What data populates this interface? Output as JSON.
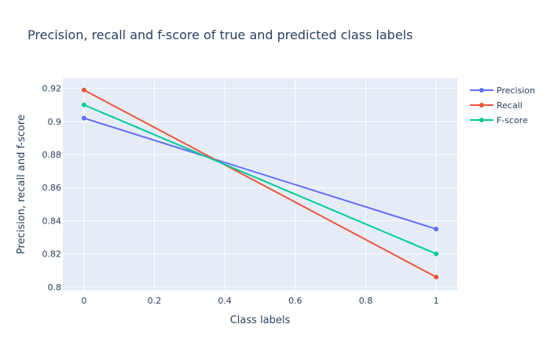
{
  "chart_data": {
    "type": "line",
    "title": "Precision, recall and f-score of true and predicted class labels",
    "xlabel": "Class labels",
    "ylabel": "Precision, recall and f-score",
    "x": [
      0,
      1
    ],
    "xlim": [
      -0.06,
      1.06
    ],
    "ylim": [
      0.798,
      0.926
    ],
    "x_ticks": [
      0,
      0.2,
      0.4,
      0.6,
      0.8,
      1
    ],
    "x_tick_labels": [
      "0",
      "0.2",
      "0.4",
      "0.6",
      "0.8",
      "1"
    ],
    "y_ticks": [
      0.8,
      0.82,
      0.84,
      0.86,
      0.88,
      0.9,
      0.92
    ],
    "y_tick_labels": [
      "0.8",
      "0.82",
      "0.84",
      "0.86",
      "0.88",
      "0.9",
      "0.92"
    ],
    "grid": true,
    "legend_position": "top-right",
    "plot_background": "#e5ecf6",
    "series": [
      {
        "name": "Precision",
        "color": "#636efa",
        "values": [
          0.902,
          0.835
        ]
      },
      {
        "name": "Recall",
        "color": "#ef553b",
        "values": [
          0.919,
          0.806
        ]
      },
      {
        "name": "F-score",
        "color": "#00cc96",
        "values": [
          0.91,
          0.82
        ]
      }
    ]
  }
}
